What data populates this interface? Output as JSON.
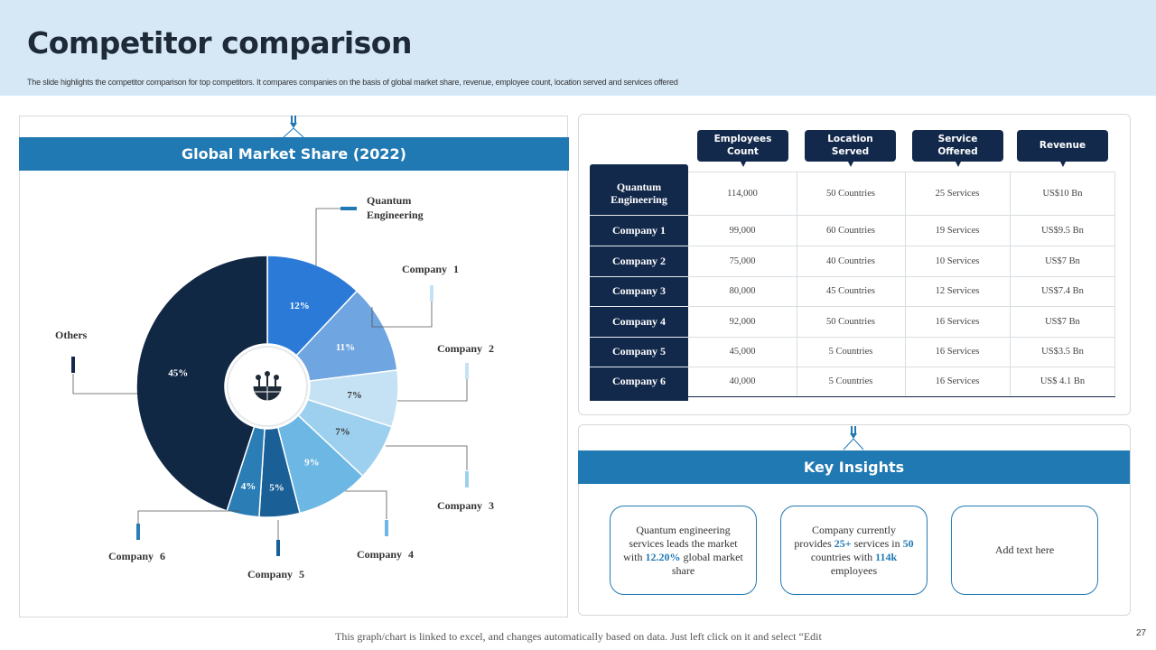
{
  "header": {
    "title": "Competitor comparison",
    "subtitle": "The slide highlights the competitor comparison for top competitors. It compares companies on the basis of global market share, revenue, employee count, location served and services offered"
  },
  "market_share_panel": {
    "title": "Global Market Share (2022)"
  },
  "chart_data": {
    "type": "pie",
    "title": "Global Market Share (2022)",
    "categories": [
      "Quantum Engineering",
      "Company 1",
      "Company 2",
      "Company 3",
      "Company 4",
      "Company 5",
      "Company 6",
      "Others"
    ],
    "values": [
      12,
      11,
      7,
      7,
      9,
      5,
      4,
      45
    ],
    "value_labels": [
      "12%",
      "11%",
      "7%",
      "7%",
      "9%",
      "5%",
      "4%",
      "45%"
    ],
    "callout_labels": [
      "Quantum Engineering",
      "Company 1",
      "Company 2",
      "Company 3",
      "Company 4",
      "Company 5",
      "Company 6",
      "Others"
    ],
    "colors": [
      "#2c7ad8",
      "#6fa5e0",
      "#c4e2f4",
      "#9dd0ee",
      "#6cb7e3",
      "#1a5f96",
      "#2a7db5",
      "#112845"
    ],
    "label_colors": [
      "#ffffff",
      "#ffffff",
      "#333333",
      "#333333",
      "#ffffff",
      "#ffffff",
      "#ffffff",
      "#ffffff"
    ],
    "donut_center_icon": "globe-network-icon"
  },
  "table": {
    "columns": [
      "Employees Count",
      "Location Served",
      "Service Offered",
      "Revenue"
    ],
    "rows": [
      {
        "name": "Quantum Engineering",
        "cells": [
          "114,000",
          "50 Countries",
          "25 Services",
          "US$10 Bn"
        ]
      },
      {
        "name": "Company 1",
        "cells": [
          "99,000",
          "60 Countries",
          "19 Services",
          "US$9.5 Bn"
        ]
      },
      {
        "name": "Company 2",
        "cells": [
          "75,000",
          "40 Countries",
          "10 Services",
          "US$7 Bn"
        ]
      },
      {
        "name": "Company 3",
        "cells": [
          "80,000",
          "45 Countries",
          "12 Services",
          "US$7.4 Bn"
        ]
      },
      {
        "name": "Company 4",
        "cells": [
          "92,000",
          "50 Countries",
          "16 Services",
          "US$7 Bn"
        ]
      },
      {
        "name": "Company 5",
        "cells": [
          "45,000",
          "5 Countries",
          "16 Services",
          "US$3.5 Bn"
        ]
      },
      {
        "name": "Company 6",
        "cells": [
          "40,000",
          "5 Countries",
          "16 Services",
          "US$ 4.1 Bn"
        ]
      }
    ]
  },
  "insights": {
    "title": "Key Insights",
    "card1": {
      "t1": "Quantum engineering services leads the market with ",
      "hl1": "12.20%",
      "t2": " global market share"
    },
    "card2": {
      "t1": "Company currently provides ",
      "hl1": "25+",
      "t2": " services in ",
      "hl2": "50",
      "t3": " countries with ",
      "hl3": "114k",
      "t4": " employees"
    },
    "card3": {
      "text": "Add text here"
    }
  },
  "footer": {
    "note": "This graph/chart is linked to excel,  and changes  automatically based on data. Just left click on it and select “Edit",
    "page_number": "27"
  },
  "colors": {
    "primary_blue": "#2179b3",
    "navy": "#13294b",
    "header_bg": "#d6e8f6"
  },
  "icons": {
    "connector_top": "hanging-connector-icon"
  }
}
